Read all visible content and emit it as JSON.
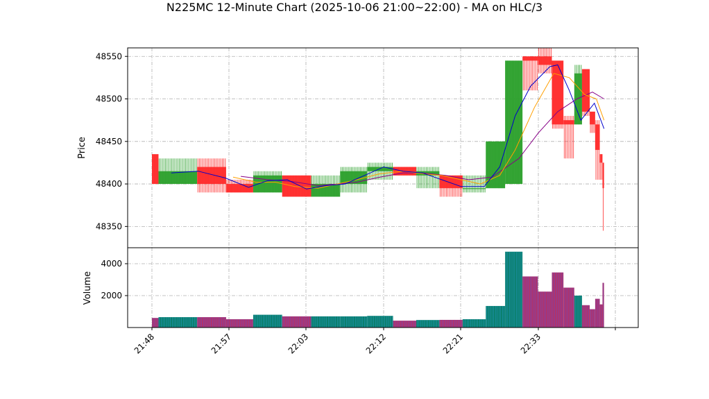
{
  "chart_data": {
    "type": "candlestick",
    "title": "N225MC 12-Minute Chart (2025-10-06 21:00~22:00) - MA on HLC/3",
    "ylabel_price": "Price",
    "ylabel_volume": "Volume",
    "x_tick_labels": [
      "21:48",
      "21:57",
      "22:03",
      "22:12",
      "22:21",
      "22:33",
      ""
    ],
    "price_ticks": [
      48350,
      48400,
      48450,
      48500,
      48550
    ],
    "volume_ticks": [
      2000,
      4000
    ],
    "price_ylim": [
      48325,
      48560
    ],
    "volume_ylim": [
      0,
      5000
    ],
    "grid": true,
    "up_color": "#2ca02c",
    "down_color": "#ff2a2a",
    "ma_short_color": "#0000cc",
    "ma_mid_color": "#ff9f00",
    "ma_long_color": "#880088",
    "candles": [
      {
        "x": 0.0,
        "w": 0.17,
        "o": 48435,
        "h": 48435,
        "l": 48400,
        "c": 48400,
        "v": 600
      },
      {
        "x": 0.17,
        "w": 1.0,
        "o": 48400,
        "h": 48430,
        "l": 48400,
        "c": 48415,
        "v": 650
      },
      {
        "x": 1.17,
        "w": 0.75,
        "o": 48420,
        "h": 48430,
        "l": 48390,
        "c": 48400,
        "v": 650
      },
      {
        "x": 1.92,
        "w": 0.7,
        "o": 48400,
        "h": 48405,
        "l": 48390,
        "c": 48390,
        "v": 520
      },
      {
        "x": 2.62,
        "w": 0.75,
        "o": 48390,
        "h": 48415,
        "l": 48390,
        "c": 48410,
        "v": 800
      },
      {
        "x": 3.37,
        "w": 0.75,
        "o": 48410,
        "h": 48410,
        "l": 48385,
        "c": 48385,
        "v": 700
      },
      {
        "x": 4.12,
        "w": 0.75,
        "o": 48385,
        "h": 48410,
        "l": 48385,
        "c": 48400,
        "v": 700
      },
      {
        "x": 4.87,
        "w": 0.7,
        "o": 48400,
        "h": 48420,
        "l": 48390,
        "c": 48415,
        "v": 700
      },
      {
        "x": 5.57,
        "w": 0.67,
        "o": 48415,
        "h": 48425,
        "l": 48405,
        "c": 48420,
        "v": 730
      },
      {
        "x": 6.24,
        "w": 0.6,
        "o": 48420,
        "h": 48420,
        "l": 48410,
        "c": 48410,
        "v": 430
      },
      {
        "x": 6.84,
        "w": 0.6,
        "o": 48410,
        "h": 48420,
        "l": 48395,
        "c": 48415,
        "v": 470
      },
      {
        "x": 7.44,
        "w": 0.6,
        "o": 48410,
        "h": 48410,
        "l": 48385,
        "c": 48395,
        "v": 480
      },
      {
        "x": 8.04,
        "w": 0.6,
        "o": 48395,
        "h": 48410,
        "l": 48390,
        "c": 48395,
        "v": 520
      },
      {
        "x": 8.64,
        "w": 0.5,
        "o": 48395,
        "h": 48450,
        "l": 48395,
        "c": 48450,
        "v": 1350
      },
      {
        "x": 9.14,
        "w": 0.45,
        "o": 48400,
        "h": 48545,
        "l": 48400,
        "c": 48545,
        "v": 4750
      },
      {
        "x": 9.59,
        "w": 0.4,
        "o": 48550,
        "h": 48550,
        "l": 48510,
        "c": 48545,
        "v": 3200
      },
      {
        "x": 9.99,
        "w": 0.36,
        "o": 48550,
        "h": 48560,
        "l": 48530,
        "c": 48540,
        "v": 2250
      },
      {
        "x": 10.35,
        "w": 0.3,
        "o": 48545,
        "h": 48545,
        "l": 48465,
        "c": 48470,
        "v": 3450
      },
      {
        "x": 10.65,
        "w": 0.28,
        "o": 48475,
        "h": 48480,
        "l": 48430,
        "c": 48470,
        "v": 2500
      },
      {
        "x": 10.93,
        "w": 0.2,
        "o": 48470,
        "h": 48540,
        "l": 48470,
        "c": 48530,
        "v": 2000
      },
      {
        "x": 11.13,
        "w": 0.2,
        "o": 48535,
        "h": 48535,
        "l": 48480,
        "c": 48485,
        "v": 1400
      },
      {
        "x": 11.33,
        "w": 0.14,
        "o": 48485,
        "h": 48485,
        "l": 48460,
        "c": 48470,
        "v": 1150
      },
      {
        "x": 11.47,
        "w": 0.12,
        "o": 48470,
        "h": 48475,
        "l": 48405,
        "c": 48440,
        "v": 1800
      },
      {
        "x": 11.59,
        "w": 0.07,
        "o": 48435,
        "h": 48435,
        "l": 48405,
        "c": 48425,
        "v": 1450
      },
      {
        "x": 11.66,
        "w": 0.04,
        "o": 48425,
        "h": 48425,
        "l": 48345,
        "c": 48395,
        "v": 2800
      }
    ],
    "ma_short": [
      [
        0.5,
        48413
      ],
      [
        1.2,
        48415
      ],
      [
        1.9,
        48407
      ],
      [
        2.5,
        48396
      ],
      [
        3.0,
        48404
      ],
      [
        3.5,
        48405
      ],
      [
        4.0,
        48394
      ],
      [
        4.5,
        48398
      ],
      [
        5.0,
        48400
      ],
      [
        5.5,
        48410
      ],
      [
        6.0,
        48420
      ],
      [
        6.5,
        48415
      ],
      [
        7.0,
        48413
      ],
      [
        7.5,
        48405
      ],
      [
        8.0,
        48397
      ],
      [
        8.6,
        48397
      ],
      [
        9.0,
        48420
      ],
      [
        9.4,
        48480
      ],
      [
        9.8,
        48515
      ],
      [
        10.3,
        48538
      ],
      [
        10.5,
        48540
      ],
      [
        10.8,
        48510
      ],
      [
        11.1,
        48475
      ],
      [
        11.45,
        48495
      ],
      [
        11.7,
        48465
      ]
    ],
    "ma_mid": [
      [
        2.1,
        48408
      ],
      [
        2.7,
        48402
      ],
      [
        3.2,
        48402
      ],
      [
        3.7,
        48397
      ],
      [
        4.3,
        48395
      ],
      [
        4.8,
        48400
      ],
      [
        5.3,
        48405
      ],
      [
        5.9,
        48412
      ],
      [
        6.5,
        48415
      ],
      [
        7.0,
        48412
      ],
      [
        7.5,
        48410
      ],
      [
        8.0,
        48405
      ],
      [
        8.5,
        48400
      ],
      [
        9.0,
        48410
      ],
      [
        9.4,
        48440
      ],
      [
        9.9,
        48490
      ],
      [
        10.4,
        48530
      ],
      [
        10.8,
        48525
      ],
      [
        11.2,
        48505
      ],
      [
        11.5,
        48500
      ],
      [
        11.7,
        48475
      ]
    ],
    "ma_long": [
      [
        2.3,
        48409
      ],
      [
        3.0,
        48405
      ],
      [
        3.6,
        48403
      ],
      [
        4.3,
        48398
      ],
      [
        4.8,
        48400
      ],
      [
        5.3,
        48402
      ],
      [
        5.9,
        48408
      ],
      [
        6.5,
        48413
      ],
      [
        7.0,
        48413
      ],
      [
        7.6,
        48410
      ],
      [
        8.2,
        48405
      ],
      [
        8.8,
        48408
      ],
      [
        9.5,
        48430
      ],
      [
        10.0,
        48460
      ],
      [
        10.5,
        48485
      ],
      [
        11.0,
        48500
      ],
      [
        11.4,
        48508
      ],
      [
        11.7,
        48500
      ]
    ]
  }
}
